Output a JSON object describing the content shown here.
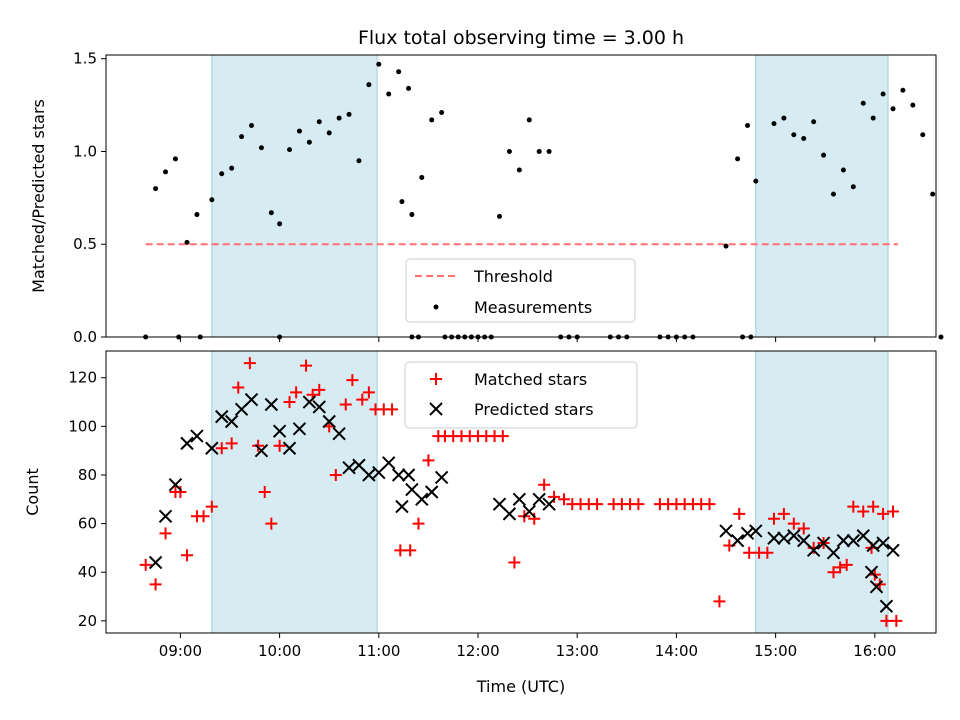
{
  "chart_data": [
    {
      "type": "scatter",
      "title": "Flux total observing time = 3.00 h",
      "xlabel": "",
      "ylabel": "Matched/Predicted stars",
      "xlim": [
        "08:15",
        "16:37"
      ],
      "ylim": [
        0,
        1.52
      ],
      "yticks": [
        "0.0",
        "0.5",
        "1.0",
        "1.5"
      ],
      "grid": false,
      "legend_placement": "bottom-center",
      "shaded_intervals": [
        [
          "09:19",
          "10:59"
        ],
        [
          "14:48",
          "16:08"
        ]
      ],
      "threshold": {
        "name": "Threshold",
        "y": 0.5,
        "x": [
          "08:39",
          "16:14"
        ],
        "color": "#ff7070"
      },
      "series": [
        {
          "name": "Measurements",
          "color": "#000000",
          "points": [
            [
              "08:39",
              0.0
            ],
            [
              "08:45",
              0.8
            ],
            [
              "08:51",
              0.89
            ],
            [
              "08:57",
              0.96
            ],
            [
              "08:59",
              0.0
            ],
            [
              "09:04",
              0.51
            ],
            [
              "09:10",
              0.66
            ],
            [
              "09:12",
              0.0
            ],
            [
              "09:19",
              0.74
            ],
            [
              "09:25",
              0.88
            ],
            [
              "09:31",
              0.91
            ],
            [
              "09:37",
              1.08
            ],
            [
              "09:43",
              1.14
            ],
            [
              "09:49",
              1.02
            ],
            [
              "09:55",
              0.67
            ],
            [
              "10:00",
              0.61
            ],
            [
              "10:00",
              0.0
            ],
            [
              "10:06",
              1.01
            ],
            [
              "10:12",
              1.11
            ],
            [
              "10:18",
              1.05
            ],
            [
              "10:24",
              1.16
            ],
            [
              "10:30",
              1.1
            ],
            [
              "10:36",
              1.18
            ],
            [
              "10:42",
              1.2
            ],
            [
              "10:48",
              0.95
            ],
            [
              "10:54",
              1.36
            ],
            [
              "11:00",
              1.47
            ],
            [
              "11:06",
              1.31
            ],
            [
              "11:12",
              1.43
            ],
            [
              "11:18",
              1.34
            ],
            [
              "11:20",
              0.0
            ],
            [
              "11:24",
              0.0
            ],
            [
              "11:14",
              0.73
            ],
            [
              "11:20",
              0.66
            ],
            [
              "11:26",
              0.86
            ],
            [
              "11:32",
              1.17
            ],
            [
              "11:38",
              1.21
            ],
            [
              "11:40",
              0.0
            ],
            [
              "11:44",
              0.0
            ],
            [
              "11:48",
              0.0
            ],
            [
              "11:52",
              0.0
            ],
            [
              "11:56",
              0.0
            ],
            [
              "12:00",
              0.0
            ],
            [
              "12:04",
              0.0
            ],
            [
              "12:08",
              0.0
            ],
            [
              "12:13",
              0.65
            ],
            [
              "12:19",
              1.0
            ],
            [
              "12:25",
              0.9
            ],
            [
              "12:31",
              1.17
            ],
            [
              "12:37",
              1.0
            ],
            [
              "12:43",
              1.0
            ],
            [
              "12:50",
              0.0
            ],
            [
              "12:55",
              0.0
            ],
            [
              "13:00",
              0.0
            ],
            [
              "13:20",
              0.0
            ],
            [
              "13:25",
              0.0
            ],
            [
              "13:30",
              0.0
            ],
            [
              "13:50",
              0.0
            ],
            [
              "13:55",
              0.0
            ],
            [
              "14:00",
              0.0
            ],
            [
              "14:05",
              0.0
            ],
            [
              "14:10",
              0.0
            ],
            [
              "14:30",
              0.49
            ],
            [
              "14:37",
              0.96
            ],
            [
              "14:43",
              1.14
            ],
            [
              "14:48",
              0.84
            ],
            [
              "14:40",
              0.0
            ],
            [
              "14:45",
              0.0
            ],
            [
              "14:59",
              1.15
            ],
            [
              "15:05",
              1.18
            ],
            [
              "15:11",
              1.09
            ],
            [
              "15:17",
              1.07
            ],
            [
              "15:23",
              1.16
            ],
            [
              "15:29",
              0.98
            ],
            [
              "15:35",
              0.77
            ],
            [
              "15:41",
              0.9
            ],
            [
              "15:47",
              0.81
            ],
            [
              "15:53",
              1.26
            ],
            [
              "15:59",
              1.18
            ],
            [
              "16:05",
              1.31
            ],
            [
              "16:11",
              1.23
            ],
            [
              "16:17",
              1.33
            ],
            [
              "16:23",
              1.25
            ],
            [
              "16:29",
              1.09
            ],
            [
              "16:35",
              0.77
            ],
            [
              "16:40",
              0.0
            ]
          ]
        }
      ]
    },
    {
      "type": "scatter",
      "title": "",
      "xlabel": "Time (UTC)",
      "ylabel": "Count",
      "xlim": [
        "08:15",
        "16:37"
      ],
      "ylim": [
        15,
        131
      ],
      "xticks": [
        "09:00",
        "10:00",
        "11:00",
        "12:00",
        "13:00",
        "14:00",
        "15:00",
        "16:00"
      ],
      "yticks": [
        20,
        40,
        60,
        80,
        100,
        120
      ],
      "grid": false,
      "legend_placement": "top-center",
      "shaded_intervals": [
        [
          "09:19",
          "10:59"
        ],
        [
          "14:48",
          "16:08"
        ]
      ],
      "series": [
        {
          "name": "Matched stars",
          "color": "#ff0000",
          "points": [
            [
              "08:39",
              43
            ],
            [
              "08:45",
              35
            ],
            [
              "08:51",
              56
            ],
            [
              "08:57",
              73
            ],
            [
              "09:00",
              73
            ],
            [
              "09:04",
              47
            ],
            [
              "09:10",
              63
            ],
            [
              "09:14",
              63
            ],
            [
              "09:19",
              67
            ],
            [
              "09:25",
              91
            ],
            [
              "09:31",
              93
            ],
            [
              "09:35",
              116
            ],
            [
              "09:42",
              126
            ],
            [
              "09:47",
              92
            ],
            [
              "09:51",
              73
            ],
            [
              "09:55",
              60
            ],
            [
              "10:00",
              92
            ],
            [
              "10:06",
              110
            ],
            [
              "10:10",
              114
            ],
            [
              "10:16",
              125
            ],
            [
              "10:20",
              113
            ],
            [
              "10:24",
              115
            ],
            [
              "10:30",
              100
            ],
            [
              "10:34",
              80
            ],
            [
              "10:40",
              109
            ],
            [
              "10:44",
              119
            ],
            [
              "10:50",
              111
            ],
            [
              "10:54",
              114
            ],
            [
              "10:58",
              107
            ],
            [
              "11:03",
              107
            ],
            [
              "11:08",
              107
            ],
            [
              "11:13",
              49
            ],
            [
              "11:19",
              49
            ],
            [
              "11:24",
              60
            ],
            [
              "11:30",
              86
            ],
            [
              "11:36",
              96
            ],
            [
              "11:40",
              96
            ],
            [
              "11:45",
              96
            ],
            [
              "11:50",
              96
            ],
            [
              "11:55",
              96
            ],
            [
              "12:00",
              96
            ],
            [
              "12:05",
              96
            ],
            [
              "12:10",
              96
            ],
            [
              "12:15",
              96
            ],
            [
              "12:22",
              44
            ],
            [
              "12:28",
              63
            ],
            [
              "12:34",
              62
            ],
            [
              "12:40",
              76
            ],
            [
              "12:46",
              71
            ],
            [
              "12:52",
              70
            ],
            [
              "12:57",
              68
            ],
            [
              "13:02",
              68
            ],
            [
              "13:07",
              68
            ],
            [
              "13:12",
              68
            ],
            [
              "13:22",
              68
            ],
            [
              "13:27",
              68
            ],
            [
              "13:32",
              68
            ],
            [
              "13:37",
              68
            ],
            [
              "13:50",
              68
            ],
            [
              "13:55",
              68
            ],
            [
              "14:00",
              68
            ],
            [
              "14:05",
              68
            ],
            [
              "14:10",
              68
            ],
            [
              "14:15",
              68
            ],
            [
              "14:20",
              68
            ],
            [
              "14:26",
              28
            ],
            [
              "14:32",
              51
            ],
            [
              "14:38",
              64
            ],
            [
              "14:44",
              48
            ],
            [
              "14:50",
              48
            ],
            [
              "14:55",
              48
            ],
            [
              "14:59",
              62
            ],
            [
              "15:05",
              64
            ],
            [
              "15:11",
              60
            ],
            [
              "15:17",
              58
            ],
            [
              "15:23",
              50
            ],
            [
              "15:29",
              52
            ],
            [
              "15:35",
              40
            ],
            [
              "15:39",
              42
            ],
            [
              "15:43",
              43
            ],
            [
              "15:47",
              67
            ],
            [
              "15:53",
              65
            ],
            [
              "15:59",
              67
            ],
            [
              "16:05",
              64
            ],
            [
              "16:11",
              65
            ],
            [
              "15:58",
              50
            ],
            [
              "16:00",
              39
            ],
            [
              "16:03",
              35
            ],
            [
              "16:07",
              20
            ],
            [
              "16:13",
              20
            ]
          ]
        },
        {
          "name": "Predicted stars",
          "color": "#000000",
          "points": [
            [
              "08:45",
              44
            ],
            [
              "08:51",
              63
            ],
            [
              "08:57",
              76
            ],
            [
              "09:04",
              93
            ],
            [
              "09:10",
              96
            ],
            [
              "09:19",
              91
            ],
            [
              "09:25",
              104
            ],
            [
              "09:31",
              102
            ],
            [
              "09:37",
              107
            ],
            [
              "09:43",
              111
            ],
            [
              "09:49",
              90
            ],
            [
              "09:55",
              109
            ],
            [
              "10:00",
              98
            ],
            [
              "10:06",
              91
            ],
            [
              "10:12",
              99
            ],
            [
              "10:18",
              110
            ],
            [
              "10:24",
              108
            ],
            [
              "10:30",
              102
            ],
            [
              "10:36",
              97
            ],
            [
              "10:42",
              83
            ],
            [
              "10:48",
              84
            ],
            [
              "10:54",
              80
            ],
            [
              "11:00",
              81
            ],
            [
              "11:06",
              85
            ],
            [
              "11:12",
              80
            ],
            [
              "11:18",
              80
            ],
            [
              "11:14",
              67
            ],
            [
              "11:20",
              74
            ],
            [
              "11:26",
              70
            ],
            [
              "11:32",
              73
            ],
            [
              "11:38",
              79
            ],
            [
              "12:13",
              68
            ],
            [
              "12:19",
              64
            ],
            [
              "12:25",
              70
            ],
            [
              "12:31",
              65
            ],
            [
              "12:37",
              70
            ],
            [
              "12:43",
              68
            ],
            [
              "14:30",
              57
            ],
            [
              "14:37",
              53
            ],
            [
              "14:43",
              56
            ],
            [
              "14:48",
              57
            ],
            [
              "14:59",
              54
            ],
            [
              "15:05",
              54
            ],
            [
              "15:11",
              55
            ],
            [
              "15:17",
              53
            ],
            [
              "15:23",
              49
            ],
            [
              "15:29",
              52
            ],
            [
              "15:35",
              48
            ],
            [
              "15:41",
              53
            ],
            [
              "15:47",
              53
            ],
            [
              "15:53",
              55
            ],
            [
              "15:59",
              51
            ],
            [
              "16:05",
              52
            ],
            [
              "16:11",
              49
            ],
            [
              "15:58",
              40
            ],
            [
              "16:01",
              34
            ],
            [
              "16:07",
              26
            ]
          ]
        }
      ]
    }
  ]
}
